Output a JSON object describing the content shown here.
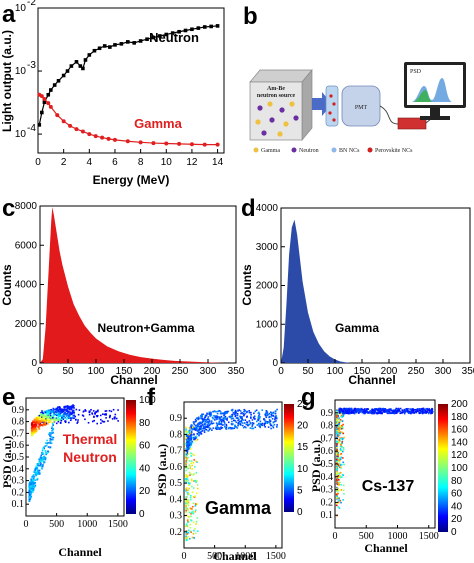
{
  "panel_labels": [
    "a",
    "b",
    "c",
    "d",
    "e",
    "f",
    "g"
  ],
  "colors": {
    "neutron": "#000000",
    "gamma": "#e02020",
    "hist_c": "#e31a1c",
    "hist_d": "#2c4aa8"
  },
  "chart_data": [
    {
      "id": "a",
      "type": "line",
      "xlabel": "Energy (MeV)",
      "ylabel": "Light output (a.u.)",
      "xlim": [
        0,
        14.5
      ],
      "ylim_log10": [
        -4.3,
        -2
      ],
      "y_scale": "log",
      "xticks": [
        "0",
        "2",
        "4",
        "6",
        "8",
        "10",
        "12",
        "14"
      ],
      "yticks": [
        "10",
        "10",
        "10"
      ],
      "ytick_exponents": [
        "-4",
        "-3",
        "-2"
      ],
      "series": [
        {
          "name": "Neutron",
          "color": "#000000",
          "x": [
            0.1,
            0.3,
            0.5,
            0.8,
            1.0,
            1.3,
            1.6,
            2.0,
            2.3,
            2.6,
            3.0,
            3.3,
            3.5,
            3.7,
            4.0,
            4.4,
            4.8,
            5.2,
            5.6,
            6.0,
            6.5,
            7.0,
            7.5,
            8.0,
            8.5,
            9.0,
            9.5,
            10.0,
            10.5,
            11.0,
            11.5,
            12.0,
            12.5,
            13.0,
            13.5,
            14.0
          ],
          "y": [
            0.00014,
            0.00022,
            0.00032,
            0.00042,
            0.0005,
            0.0006,
            0.0007,
            0.00085,
            0.001,
            0.0012,
            0.0014,
            0.0012,
            0.0011,
            0.0015,
            0.0018,
            0.0021,
            0.0023,
            0.0025,
            0.0024,
            0.0026,
            0.0027,
            0.0029,
            0.0028,
            0.003,
            0.0032,
            0.0034,
            0.0036,
            0.0038,
            0.004,
            0.0042,
            0.0044,
            0.0046,
            0.0048,
            0.005,
            0.0051,
            0.0052
          ]
        },
        {
          "name": "Gamma",
          "color": "#e02020",
          "x": [
            0.1,
            0.3,
            0.5,
            0.8,
            1.0,
            1.5,
            2.0,
            2.5,
            3.0,
            3.5,
            4.0,
            4.5,
            5.0,
            5.5,
            6.0,
            7.0,
            8.0,
            9.0,
            10.0,
            11.0,
            12.0,
            13.0,
            14.0
          ],
          "y": [
            0.00042,
            0.0004,
            0.00036,
            0.00031,
            0.00027,
            0.0002,
            0.00016,
            0.000135,
            0.00012,
            0.00011,
            0.0001,
            9.3e-05,
            8.8e-05,
            8.4e-05,
            8.1e-05,
            7.7e-05,
            7.4e-05,
            7.2e-05,
            7.1e-05,
            7e-05,
            6.9e-05,
            6.8e-05,
            6.8e-05
          ]
        }
      ]
    },
    {
      "id": "c",
      "type": "area",
      "annotation": "Neutron+Gamma",
      "xlabel": "Channel",
      "ylabel": "Counts",
      "xlim": [
        0,
        350
      ],
      "ylim": [
        0,
        8000
      ],
      "xticks": [
        "0",
        "50",
        "100",
        "150",
        "200",
        "250",
        "300",
        "350"
      ],
      "yticks": [
        "0",
        "2000",
        "4000",
        "6000",
        "8000"
      ],
      "x": [
        0,
        5,
        10,
        15,
        20,
        22,
        25,
        30,
        35,
        40,
        50,
        60,
        70,
        80,
        90,
        100,
        120,
        140,
        160,
        180,
        200,
        220,
        240,
        260,
        280,
        300,
        320,
        330
      ],
      "y": [
        0,
        200,
        1800,
        4500,
        7200,
        7950,
        7500,
        6600,
        5700,
        5000,
        3900,
        3000,
        2400,
        1900,
        1550,
        1250,
        850,
        600,
        420,
        300,
        220,
        160,
        110,
        80,
        55,
        30,
        10,
        0
      ]
    },
    {
      "id": "d",
      "type": "area",
      "annotation": "Gamma",
      "xlabel": "Channel",
      "ylabel": "Counts",
      "xlim": [
        0,
        350
      ],
      "ylim": [
        0,
        4000
      ],
      "xticks": [
        "0",
        "50",
        "100",
        "150",
        "200",
        "250",
        "300",
        "350"
      ],
      "yticks": [
        "0",
        "1000",
        "2000",
        "3000",
        "4000"
      ],
      "x": [
        0,
        5,
        10,
        15,
        20,
        25,
        30,
        35,
        40,
        45,
        50,
        60,
        70,
        80,
        90,
        100,
        110,
        120,
        130
      ],
      "y": [
        0,
        400,
        1500,
        2800,
        3500,
        3700,
        3300,
        2700,
        2100,
        1700,
        1300,
        800,
        500,
        300,
        170,
        90,
        40,
        15,
        0
      ]
    },
    {
      "id": "e",
      "type": "heatmap",
      "annotation": "Thermal Neutron",
      "xlabel": "Channel",
      "ylabel": "PSD (a.u.)",
      "xlim": [
        0,
        1600
      ],
      "ylim": [
        0,
        1.0
      ],
      "xticks": [
        "0",
        "500",
        "1000",
        "1500"
      ],
      "yticks": [
        "0.1",
        "0.2",
        "0.3",
        "0.4",
        "0.5",
        "0.6",
        "0.7",
        "0.8",
        "0.9"
      ],
      "colorbar_ticks": [
        "0",
        "20",
        "40",
        "60",
        "80",
        "100"
      ]
    },
    {
      "id": "f",
      "type": "heatmap",
      "annotation": "Gamma",
      "xlabel": "Channel",
      "ylabel": "PSD (a.u.)",
      "xlim": [
        0,
        1600
      ],
      "ylim": [
        0.1,
        1.0
      ],
      "xticks": [
        "0",
        "500",
        "1000",
        "1500"
      ],
      "yticks": [
        "0.2",
        "0.3",
        "0.4",
        "0.5",
        "0.6",
        "0.7",
        "0.8",
        "0.9"
      ],
      "colorbar_ticks": [
        "0",
        "5",
        "10",
        "15",
        "20",
        "25"
      ]
    },
    {
      "id": "g",
      "type": "heatmap",
      "annotation": "Cs-137",
      "xlabel": "Channel",
      "ylabel": "PSD (a.u.)",
      "xlim": [
        0,
        1600
      ],
      "ylim": [
        0.0,
        1.0
      ],
      "xticks": [
        "0",
        "500",
        "1000",
        "1500"
      ],
      "yticks": [
        "0.1",
        "0.2",
        "0.3",
        "0.4",
        "0.5",
        "0.6",
        "0.7",
        "0.8",
        "0.9"
      ],
      "colorbar_ticks": [
        "0",
        "20",
        "40",
        "60",
        "80",
        "100",
        "120",
        "140",
        "160",
        "180",
        "200"
      ]
    }
  ],
  "schematic_b": {
    "source_label_line1": "Am-Be",
    "source_label_line2": "neutron source",
    "pmt_label": "PMT",
    "screen_label": "PSD",
    "legend": [
      "Gamma",
      "Neutron",
      "BN NCs",
      "Perovskite NCs"
    ],
    "legend_colors": [
      "#f0c040",
      "#6a2fa0",
      "#8fb8e8",
      "#d02020"
    ]
  }
}
